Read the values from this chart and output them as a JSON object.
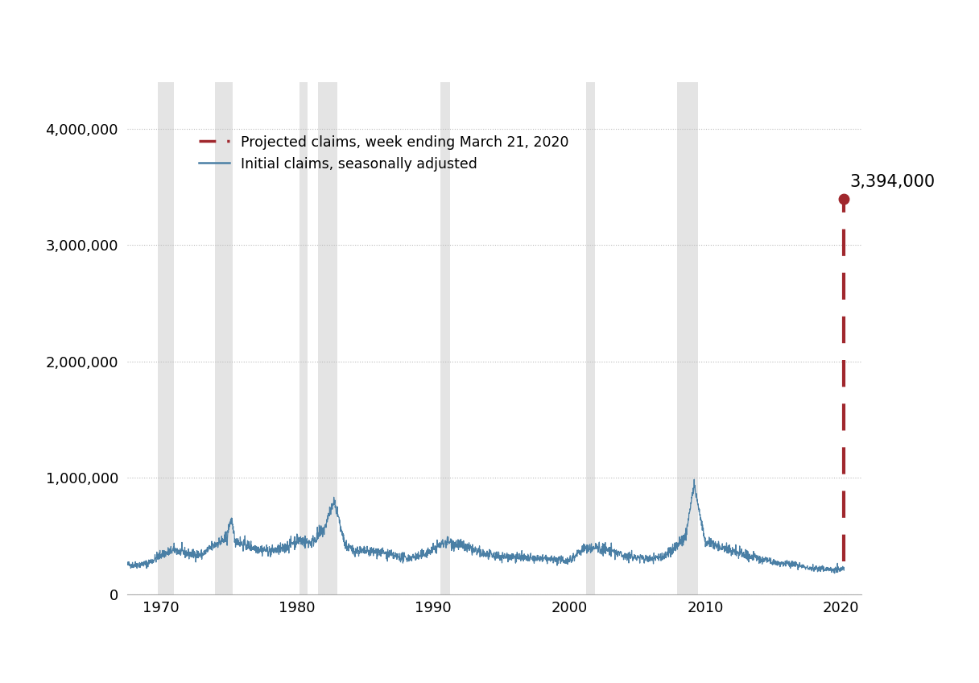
{
  "recession_bands": [
    [
      1969.75,
      1970.92
    ],
    [
      1973.92,
      1975.25
    ],
    [
      1980.17,
      1980.75
    ],
    [
      1981.5,
      1982.92
    ],
    [
      1990.5,
      1991.25
    ],
    [
      2001.25,
      2001.92
    ],
    [
      2007.92,
      2009.5
    ]
  ],
  "projected_value": 3394000,
  "projected_year": 2020.22,
  "last_actual_year": 2020.22,
  "last_actual_value": 282000,
  "annotation_text": "3,394,000",
  "legend_entries": [
    {
      "label": "Projected claims, week ending March 21, 2020",
      "color": "#a0272d",
      "linestyle": "dashed"
    },
    {
      "label": "Initial claims, seasonally adjusted",
      "color": "#4a7fa5",
      "linestyle": "solid"
    }
  ],
  "ylim": [
    0,
    4400000
  ],
  "xlim": [
    1967.5,
    2021.5
  ],
  "yticks": [
    0,
    1000000,
    2000000,
    3000000,
    4000000
  ],
  "xticks": [
    1970,
    1980,
    1990,
    2000,
    2010,
    2020
  ],
  "background_color": "#ffffff",
  "grid_color": "#bbbbbb",
  "recession_color": "#d3d3d3",
  "line_color": "#4a7fa5",
  "projected_color": "#a0272d",
  "annotation_fontsize": 15,
  "tick_fontsize": 13
}
